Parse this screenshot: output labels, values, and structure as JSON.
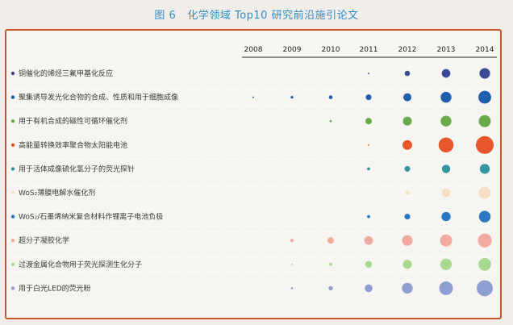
{
  "figure": {
    "number": "图 6",
    "title": "化学领域 Top10 研究前沿施引论文"
  },
  "chart_data": {
    "type": "scatter",
    "title": "化学领域 Top10 研究前沿施引论文",
    "x": [
      "2008",
      "2009",
      "2010",
      "2011",
      "2012",
      "2013",
      "2014"
    ],
    "rows": [
      {
        "label": "铜催化的烯烃三氟甲基化反应",
        "color": "#3b4a94",
        "values": [
          0,
          0,
          0,
          1,
          12,
          32,
          48
        ]
      },
      {
        "label": "聚集诱导发光化合物的合成、性质和用于细胞成像",
        "color": "#1f5fb0",
        "values": [
          1,
          3,
          6,
          14,
          28,
          50,
          70
        ]
      },
      {
        "label": "用于有机合成的磁性可循环催化剂",
        "color": "#6aaa4a",
        "values": [
          0,
          0,
          2,
          18,
          34,
          50,
          62
        ]
      },
      {
        "label": "高能量转换效率聚合物太阳能电池",
        "color": "#e8572c",
        "values": [
          0,
          0,
          0,
          1,
          40,
          95,
          135
        ]
      },
      {
        "label": "用于活体成像硫化氢分子的荧光探针",
        "color": "#3596a0",
        "values": [
          0,
          0,
          0,
          4,
          14,
          30,
          42
        ]
      },
      {
        "label": "WoS₂薄膜电解水催化剂",
        "color": "#f5dfc4",
        "values": [
          0,
          0,
          0,
          0,
          8,
          32,
          60
        ]
      },
      {
        "label": "WoS₂/石墨烯纳米复合材料作锂离子电池负极",
        "color": "#2a77c2",
        "values": [
          0,
          0,
          0,
          4,
          14,
          36,
          58
        ]
      },
      {
        "label": "超分子凝胶化学",
        "color": "#f2a9a0",
        "values": [
          0,
          5,
          18,
          32,
          48,
          62,
          82
        ]
      },
      {
        "label": "过渡金属化合物用于荧光探测生化分子",
        "color": "#a7d98f",
        "values": [
          0,
          1,
          4,
          20,
          34,
          56,
          68
        ]
      },
      {
        "label": "用于白光LED的荧光粉",
        "color": "#8f9fd1",
        "values": [
          0,
          2,
          8,
          26,
          50,
          80,
          110
        ]
      }
    ]
  }
}
